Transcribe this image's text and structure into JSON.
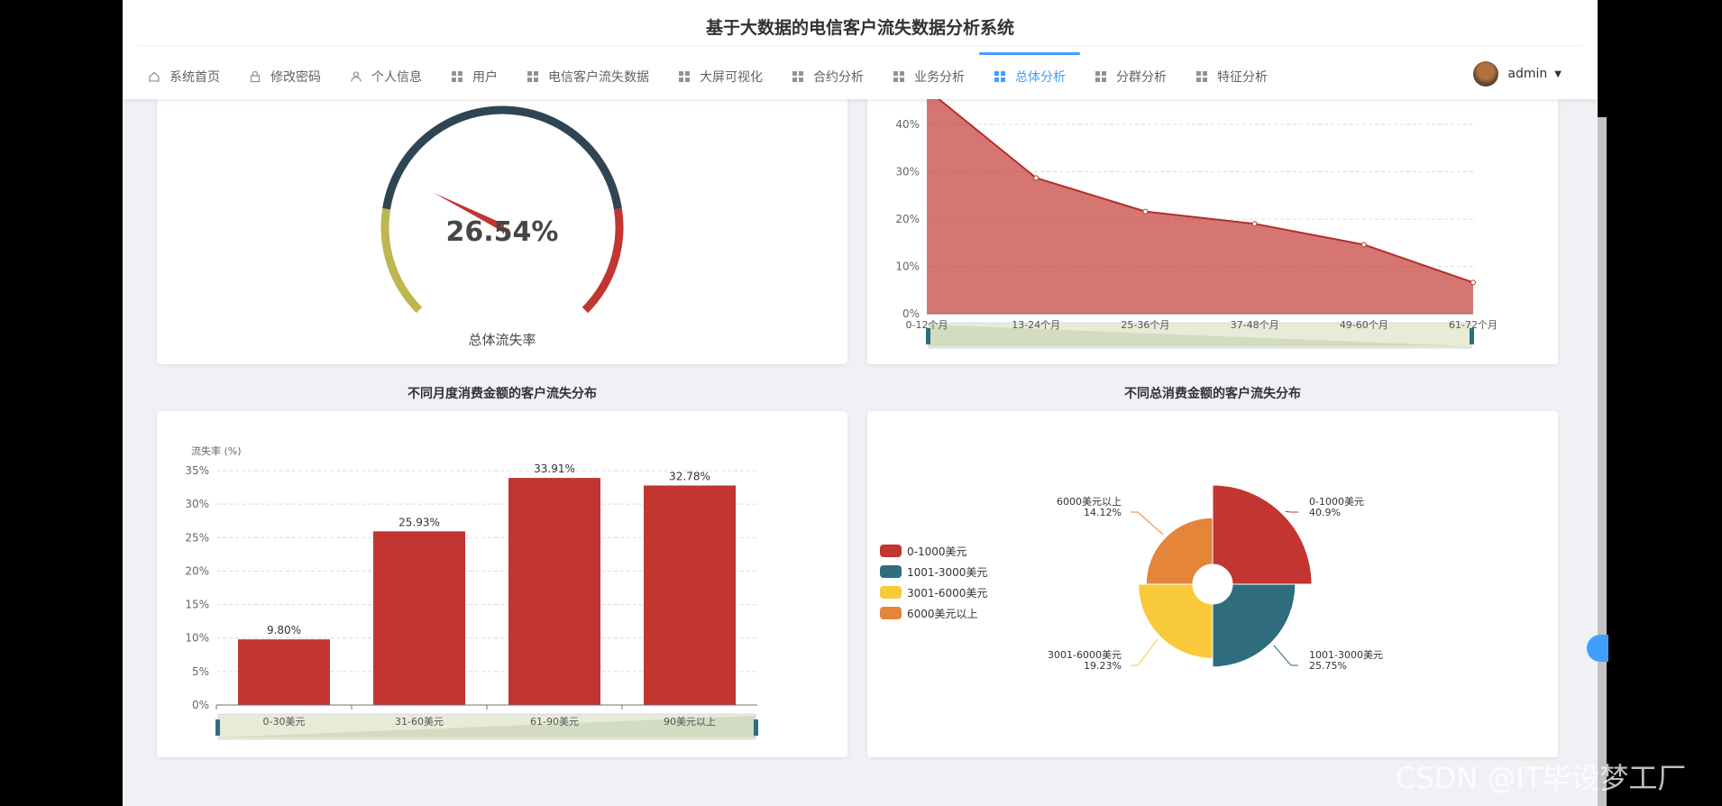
{
  "header": {
    "title": "基于大数据的电信客户流失数据分析系统"
  },
  "nav": {
    "items": [
      {
        "label": "系统首页",
        "icon": "home-icon"
      },
      {
        "label": "修改密码",
        "icon": "lock-icon"
      },
      {
        "label": "个人信息",
        "icon": "user-icon"
      },
      {
        "label": "用户",
        "icon": "grid-icon"
      },
      {
        "label": "电信客户流失数据",
        "icon": "grid-icon"
      },
      {
        "label": "大屏可视化",
        "icon": "grid-icon"
      },
      {
        "label": "合约分析",
        "icon": "grid-icon"
      },
      {
        "label": "业务分析",
        "icon": "grid-icon"
      },
      {
        "label": "总体分析",
        "icon": "grid-icon",
        "active": true
      },
      {
        "label": "分群分析",
        "icon": "grid-icon"
      },
      {
        "label": "特征分析",
        "icon": "grid-icon"
      }
    ]
  },
  "user": {
    "name": "admin"
  },
  "colors": {
    "accent": "#409eff",
    "red": "#c23531",
    "teal": "#2f4554",
    "olive": "#bcb74f",
    "orange": "#e5853a",
    "yellow": "#f8c93b"
  },
  "chart_data": [
    {
      "type": "gauge",
      "value": 26.54,
      "value_label": "26.54%",
      "label": "总体流失率"
    },
    {
      "type": "area",
      "categories": [
        "0-12个月",
        "13-24个月",
        "25-36个月",
        "37-48个月",
        "49-60个月",
        "61-72个月"
      ],
      "values": [
        47.4,
        28.7,
        21.6,
        19.0,
        14.6,
        6.6
      ],
      "y_ticks": [
        "0%",
        "10%",
        "20%",
        "30%",
        "40%"
      ],
      "ylim": [
        0,
        45
      ],
      "grid": true,
      "datazoom": true
    },
    {
      "type": "bar",
      "title": "不同月度消费金额的客户流失分布",
      "ylabel": "流失率 (%)",
      "categories": [
        "0-30美元",
        "31-60美元",
        "61-90美元",
        "90美元以上"
      ],
      "values": [
        9.8,
        25.93,
        33.91,
        32.78
      ],
      "value_labels": [
        "9.80%",
        "25.93%",
        "33.91%",
        "32.78%"
      ],
      "y_ticks": [
        "0%",
        "5%",
        "10%",
        "15%",
        "20%",
        "25%",
        "30%",
        "35%"
      ],
      "ylim": [
        0,
        35
      ],
      "grid": true,
      "datazoom": true
    },
    {
      "type": "pie",
      "title": "不同总消费金额的客户流失分布",
      "legend_position": "left",
      "slices": [
        {
          "name": "0-1000美元",
          "value": 40.9,
          "percent_label": "40.9%",
          "color": "#c23531"
        },
        {
          "name": "1001-3000美元",
          "value": 25.75,
          "percent_label": "25.75%",
          "color": "#2f6d7e"
        },
        {
          "name": "3001-6000美元",
          "value": 19.23,
          "percent_label": "19.23%",
          "color": "#f8c93b"
        },
        {
          "name": "6000美元以上",
          "value": 14.12,
          "percent_label": "14.12%",
          "color": "#e5853a"
        }
      ]
    }
  ],
  "watermark": "CSDN @IT毕设梦工厂"
}
